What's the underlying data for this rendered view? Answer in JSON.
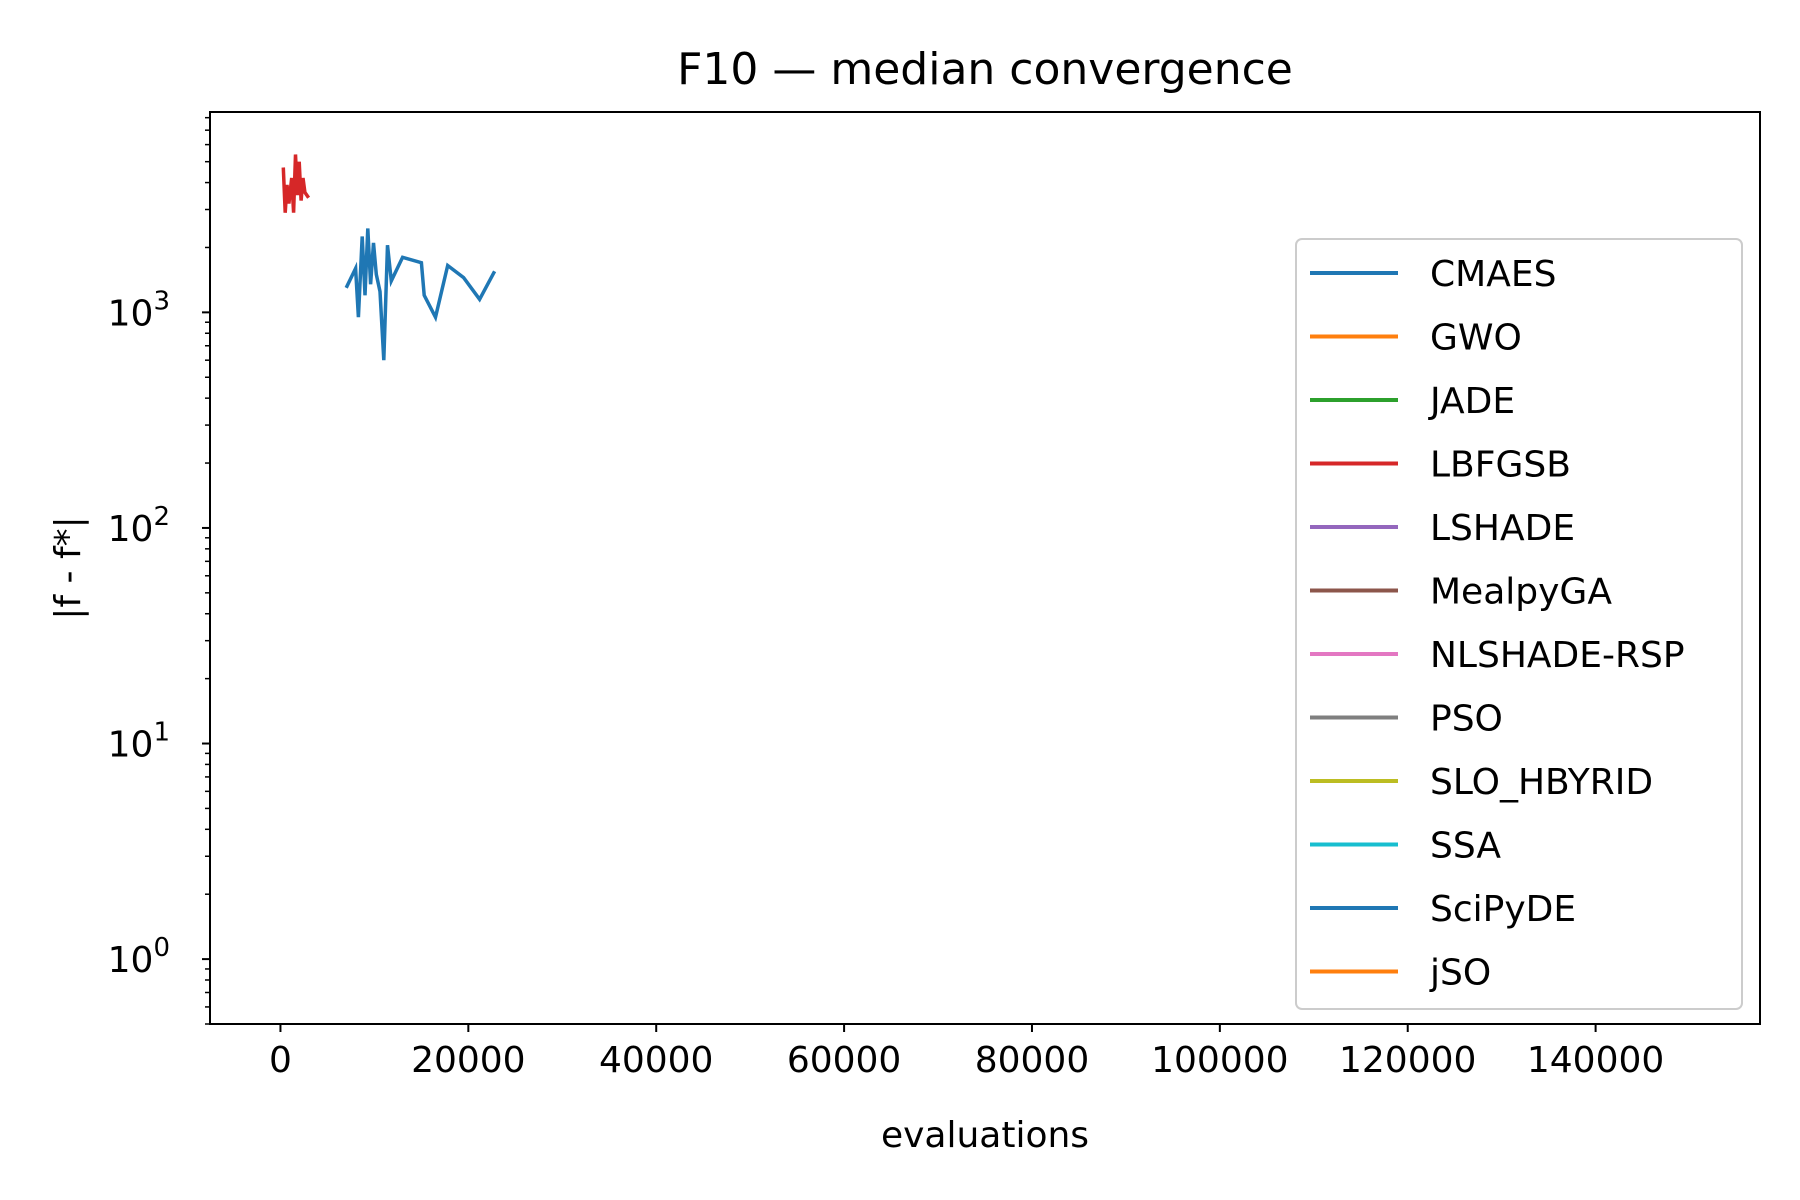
{
  "chart_data": {
    "type": "line",
    "title": "F10 — median convergence",
    "xlabel": "evaluations",
    "ylabel": "|f - f*|",
    "xlim": [
      -7500,
      157500
    ],
    "ylim": [
      0.5,
      8500
    ],
    "yscale": "log",
    "grid": false,
    "legend_position": "right",
    "x_ticks": [
      {
        "value": 0,
        "label": "0"
      },
      {
        "value": 20000,
        "label": "20000"
      },
      {
        "value": 40000,
        "label": "40000"
      },
      {
        "value": 60000,
        "label": "60000"
      },
      {
        "value": 80000,
        "label": "80000"
      },
      {
        "value": 100000,
        "label": "100000"
      },
      {
        "value": 120000,
        "label": "120000"
      },
      {
        "value": 140000,
        "label": "140000"
      }
    ],
    "y_ticks": [
      {
        "value": 1,
        "base": "10",
        "exp": "0"
      },
      {
        "value": 10,
        "base": "10",
        "exp": "1"
      },
      {
        "value": 100,
        "base": "10",
        "exp": "2"
      },
      {
        "value": 1000,
        "base": "10",
        "exp": "3"
      }
    ],
    "series": [
      {
        "name": "CMAES",
        "color": "#1f77b4",
        "x": [
          7000,
          8000,
          8300,
          8700,
          9000,
          9300,
          9600,
          9900,
          10200,
          10600,
          11000,
          11400,
          11800,
          13000,
          15000,
          15300,
          16500,
          17800,
          19500,
          21200,
          22800
        ],
        "y": [
          1300,
          1600,
          950,
          2250,
          1200,
          2450,
          1350,
          2100,
          1500,
          1250,
          600,
          2050,
          1400,
          1800,
          1700,
          1200,
          950,
          1650,
          1450,
          1150,
          1550
        ]
      },
      {
        "name": "GWO",
        "color": "#ff7f0e",
        "x": [],
        "y": []
      },
      {
        "name": "JADE",
        "color": "#2ca02c",
        "x": [],
        "y": []
      },
      {
        "name": "LBFGSB",
        "color": "#d62728",
        "x": [
          300,
          500,
          700,
          900,
          1200,
          1400,
          1600,
          1800,
          2000,
          2200,
          2400,
          2600,
          3000
        ],
        "y": [
          4700,
          2900,
          3900,
          3200,
          4200,
          2900,
          5400,
          3500,
          5000,
          3300,
          4200,
          3600,
          3400
        ]
      },
      {
        "name": "LSHADE",
        "color": "#9467bd",
        "x": [],
        "y": []
      },
      {
        "name": "MealpyGA",
        "color": "#8c564b",
        "x": [],
        "y": []
      },
      {
        "name": "NLSHADE-RSP",
        "color": "#e377c2",
        "x": [],
        "y": []
      },
      {
        "name": "PSO",
        "color": "#7f7f7f",
        "x": [],
        "y": []
      },
      {
        "name": "SLO_HBYRID",
        "color": "#bcbd22",
        "x": [],
        "y": []
      },
      {
        "name": "SSA",
        "color": "#17becf",
        "x": [],
        "y": []
      },
      {
        "name": "SciPyDE",
        "color": "#1f77b4",
        "x": [],
        "y": []
      },
      {
        "name": "jSO",
        "color": "#ff7f0e",
        "x": [],
        "y": []
      }
    ]
  }
}
